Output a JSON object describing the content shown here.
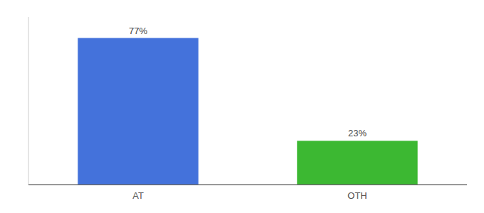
{
  "chart_data": {
    "type": "bar",
    "categories": [
      "AT",
      "OTH"
    ],
    "values": [
      77,
      23
    ],
    "value_labels": [
      "77%",
      "23%"
    ],
    "colors": [
      "#4472db",
      "#3cb832"
    ],
    "ylim": [
      0,
      88
    ],
    "data_labels": true,
    "tick_labels": "x",
    "grid": false
  }
}
